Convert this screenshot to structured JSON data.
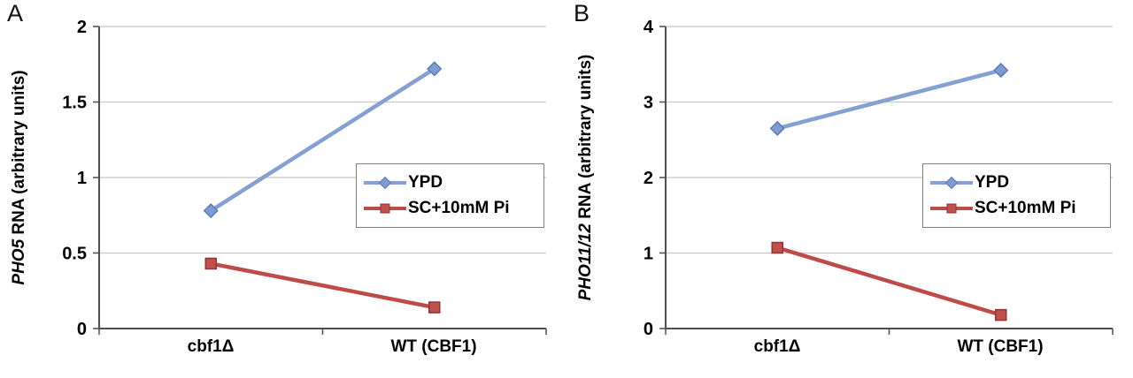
{
  "chart_data": [
    {
      "type": "line",
      "panel_label": "A",
      "categories": [
        "cbf1Δ",
        "WT (CBF1)"
      ],
      "series": [
        {
          "name": "YPD",
          "values": [
            0.78,
            1.72
          ],
          "color": "#84A1D4",
          "marker": "diamond",
          "marker_fill": "#7E9CD1",
          "marker_edge": "#5B7CB2"
        },
        {
          "name": "SC+10mM Pi",
          "values": [
            0.43,
            0.14
          ],
          "color": "#BE4B48",
          "marker": "square",
          "marker_fill": "#C0504D",
          "marker_edge": "#8E3634"
        }
      ],
      "title": "",
      "xlabel": "",
      "ylabel_italic": "PHO5",
      "ylabel_rest": " RNA (arbitrary units)",
      "ylim": [
        0,
        2
      ],
      "ytick_step": 0.5,
      "grid": "horizontal",
      "legend_position": "middle-right"
    },
    {
      "type": "line",
      "panel_label": "B",
      "categories": [
        "cbf1Δ",
        "WT (CBF1)"
      ],
      "series": [
        {
          "name": "YPD",
          "values": [
            2.65,
            3.42
          ],
          "color": "#84A1D4",
          "marker": "diamond",
          "marker_fill": "#7E9CD1",
          "marker_edge": "#5B7CB2"
        },
        {
          "name": "SC+10mM Pi",
          "values": [
            1.07,
            0.18
          ],
          "color": "#BE4B48",
          "marker": "square",
          "marker_fill": "#C0504D",
          "marker_edge": "#8E3634"
        }
      ],
      "title": "",
      "xlabel": "",
      "ylabel_italic": "PHO11/12",
      "ylabel_rest": " RNA (arbitrary units)",
      "ylim": [
        0,
        4
      ],
      "ytick_step": 1,
      "grid": "horizontal",
      "legend_position": "middle-right"
    }
  ],
  "colors": {
    "ypd_line": "#84A1D4",
    "sc_line": "#BE4B48",
    "gridline": "#C8C8C8",
    "axis": "#4D4D4D",
    "legend_border": "#7F7F7F"
  }
}
